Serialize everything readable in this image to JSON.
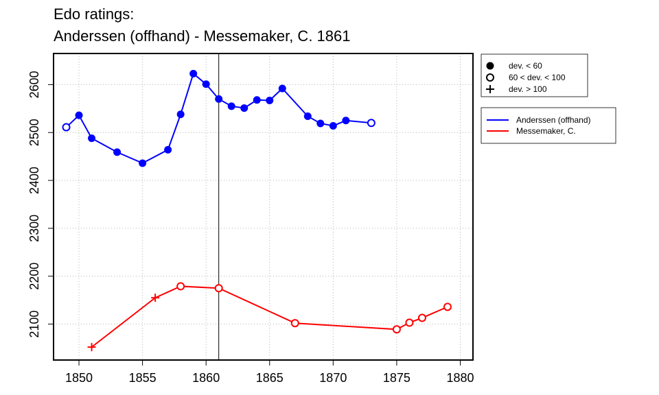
{
  "title_lines": [
    "Edo ratings:",
    "Anderssen (offhand) - Messemaker, C. 1861"
  ],
  "chart_data": {
    "type": "line",
    "xlim": [
      1848,
      1881
    ],
    "ylim": [
      2025,
      2665
    ],
    "x_ticks": [
      1850,
      1855,
      1860,
      1865,
      1870,
      1875,
      1880
    ],
    "y_ticks": [
      2100,
      2200,
      2300,
      2400,
      2500,
      2600
    ],
    "grid": true,
    "vline_x": 1861,
    "legend_markers": [
      {
        "symbol": "filled-circle",
        "label": "dev. < 60"
      },
      {
        "symbol": "open-circle",
        "label": "60 < dev. < 100"
      },
      {
        "symbol": "plus",
        "label": "dev. > 100"
      }
    ],
    "legend_placement": "right, outside plot",
    "series": [
      {
        "name": "Anderssen (offhand)",
        "color": "#0000ff",
        "points": [
          {
            "x": 1849,
            "y": 2511,
            "marker": "open-circle"
          },
          {
            "x": 1850,
            "y": 2536,
            "marker": "filled-circle"
          },
          {
            "x": 1851,
            "y": 2488,
            "marker": "filled-circle"
          },
          {
            "x": 1853,
            "y": 2459,
            "marker": "filled-circle"
          },
          {
            "x": 1855,
            "y": 2436,
            "marker": "filled-circle"
          },
          {
            "x": 1857,
            "y": 2464,
            "marker": "filled-circle"
          },
          {
            "x": 1858,
            "y": 2538,
            "marker": "filled-circle"
          },
          {
            "x": 1859,
            "y": 2623,
            "marker": "filled-circle"
          },
          {
            "x": 1860,
            "y": 2601,
            "marker": "filled-circle"
          },
          {
            "x": 1861,
            "y": 2570,
            "marker": "filled-circle"
          },
          {
            "x": 1862,
            "y": 2555,
            "marker": "filled-circle"
          },
          {
            "x": 1863,
            "y": 2551,
            "marker": "filled-circle"
          },
          {
            "x": 1864,
            "y": 2568,
            "marker": "filled-circle"
          },
          {
            "x": 1865,
            "y": 2567,
            "marker": "filled-circle"
          },
          {
            "x": 1866,
            "y": 2592,
            "marker": "filled-circle"
          },
          {
            "x": 1868,
            "y": 2534,
            "marker": "filled-circle"
          },
          {
            "x": 1869,
            "y": 2519,
            "marker": "filled-circle"
          },
          {
            "x": 1870,
            "y": 2514,
            "marker": "filled-circle"
          },
          {
            "x": 1871,
            "y": 2525,
            "marker": "filled-circle"
          },
          {
            "x": 1873,
            "y": 2520,
            "marker": "open-circle"
          }
        ]
      },
      {
        "name": "Messemaker, C.",
        "color": "#ff0000",
        "points": [
          {
            "x": 1851,
            "y": 2052,
            "marker": "plus"
          },
          {
            "x": 1856,
            "y": 2155,
            "marker": "plus"
          },
          {
            "x": 1858,
            "y": 2179,
            "marker": "open-circle"
          },
          {
            "x": 1861,
            "y": 2175,
            "marker": "open-circle"
          },
          {
            "x": 1867,
            "y": 2102,
            "marker": "open-circle"
          },
          {
            "x": 1875,
            "y": 2089,
            "marker": "open-circle"
          },
          {
            "x": 1876,
            "y": 2103,
            "marker": "open-circle"
          },
          {
            "x": 1877,
            "y": 2113,
            "marker": "open-circle"
          },
          {
            "x": 1879,
            "y": 2136,
            "marker": "open-circle"
          }
        ]
      }
    ]
  }
}
